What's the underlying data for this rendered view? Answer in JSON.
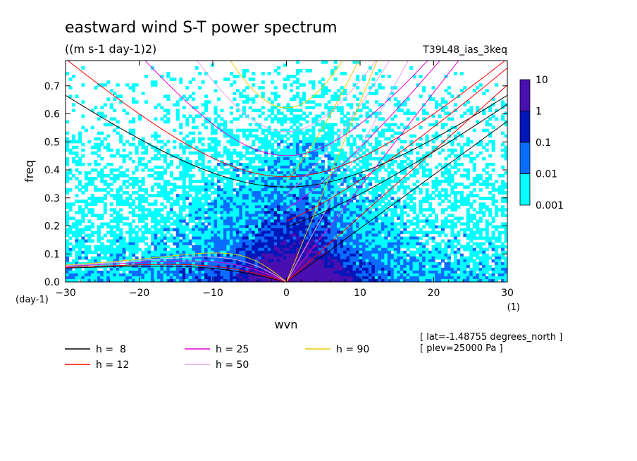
{
  "chart_data": {
    "type": "heatmap",
    "title": "eastward wind S-T power spectrum",
    "subtitle": "((m s-1 day-1)2)",
    "run_label": "T39L48_ias_3keq",
    "xlabel": "wvn",
    "ylabel": "freq",
    "x_unit": "(1)",
    "y_unit": "(day-1)",
    "xlim": [
      -30,
      30
    ],
    "ylim": [
      0,
      0.79
    ],
    "xticks": [
      -30,
      -20,
      -10,
      0,
      10,
      20,
      30
    ],
    "yticks": [
      0.0,
      0.1,
      0.2,
      0.3,
      0.4,
      0.5,
      0.6,
      0.7
    ],
    "ytick_labels": [
      "0.0",
      "0.1",
      "0.2",
      "0.3",
      "0.4",
      "0.5",
      "0.6",
      "0.7"
    ],
    "colorbar": {
      "labels": [
        "10",
        "1",
        "0.1",
        "0.01",
        "0.001"
      ],
      "levels": [
        0.001,
        0.01,
        0.1,
        1,
        10
      ],
      "colors": [
        "#00ffff",
        "#0a6dff",
        "#0016b8",
        "#4a0fb0"
      ]
    },
    "dispersion_curves": [
      {
        "name": "h =  8",
        "h": 8,
        "color": "#000000"
      },
      {
        "name": "h = 12",
        "h": 12,
        "color": "#ff0000"
      },
      {
        "name": "h = 25",
        "h": 25,
        "color": "#e600d0"
      },
      {
        "name": "h = 50",
        "h": 50,
        "color": "#e6a0e6"
      },
      {
        "name": "h = 90",
        "h": 90,
        "color": "#e6cc00"
      }
    ],
    "annotations": [
      "[ lat=-1.48755 degrees_north ]",
      "[ plev=25000 Pa ]"
    ]
  }
}
